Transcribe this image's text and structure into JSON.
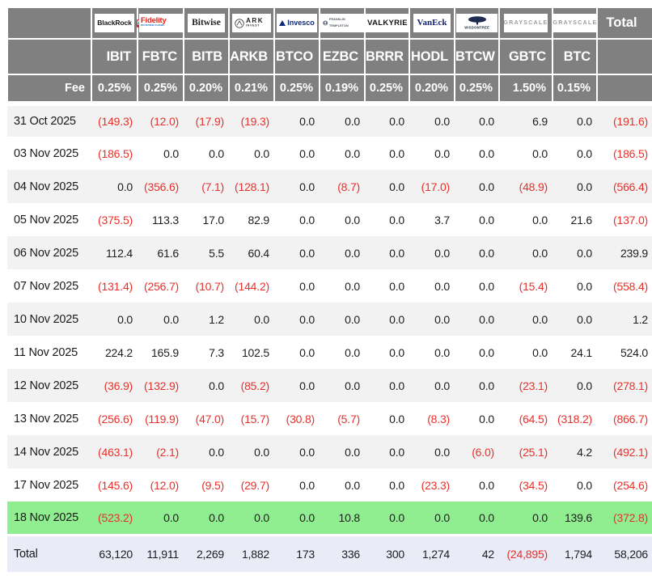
{
  "colors": {
    "header_gray": "#808080",
    "negative_red": "#e8302a",
    "highlight_green": "#90ee90",
    "total_row_bg": "#e9ecf7",
    "alt_row_bg": "#f2f2f2"
  },
  "chart_data": {
    "type": "table",
    "fee_label": "Fee",
    "total_label": "Total",
    "logos": {
      "blackrock": "BlackRock",
      "fidelity_icon": "f",
      "fidelity": "Fidelity",
      "fidelity_sub": "INTERNATIONAL",
      "bitwise": "Bitwise",
      "ark_main": "ARK",
      "ark_sub": "INVEST",
      "invesco": "Invesco",
      "franklin_line1": "FRANKLIN",
      "franklin_line2": "TEMPLETON",
      "valkyrie": "VALKYRIE",
      "vaneck": "VanEck",
      "wisdomtree": "WISDOMTREE",
      "grayscale_gbtc": "GRAYSCALE",
      "grayscale_btc": "GRAYSCALE"
    },
    "providers": [
      "BlackRock",
      "Fidelity",
      "Bitwise",
      "ARK Invest",
      "Invesco",
      "Franklin Templeton",
      "Valkyrie",
      "VanEck",
      "WisdomTree",
      "Grayscale",
      "Grayscale"
    ],
    "tickers": [
      "IBIT",
      "FBTC",
      "BITB",
      "ARKB",
      "BTCO",
      "EZBC",
      "BRRR",
      "HODL",
      "BTCW",
      "GBTC",
      "BTC"
    ],
    "fees": [
      "0.25%",
      "0.25%",
      "0.20%",
      "0.21%",
      "0.25%",
      "0.19%",
      "0.25%",
      "0.20%",
      "0.25%",
      "1.50%",
      "0.15%"
    ],
    "rows": [
      {
        "label": "31 Oct 2025",
        "values": [
          "(149.3)",
          "(12.0)",
          "(17.9)",
          "(19.3)",
          "0.0",
          "0.0",
          "0.0",
          "0.0",
          "0.0",
          "6.9",
          "0.0"
        ],
        "total": "(191.6)"
      },
      {
        "label": "03 Nov 2025",
        "values": [
          "(186.5)",
          "0.0",
          "0.0",
          "0.0",
          "0.0",
          "0.0",
          "0.0",
          "0.0",
          "0.0",
          "0.0",
          "0.0"
        ],
        "total": "(186.5)"
      },
      {
        "label": "04 Nov 2025",
        "values": [
          "0.0",
          "(356.6)",
          "(7.1)",
          "(128.1)",
          "0.0",
          "(8.7)",
          "0.0",
          "(17.0)",
          "0.0",
          "(48.9)",
          "0.0"
        ],
        "total": "(566.4)"
      },
      {
        "label": "05 Nov 2025",
        "values": [
          "(375.5)",
          "113.3",
          "17.0",
          "82.9",
          "0.0",
          "0.0",
          "0.0",
          "3.7",
          "0.0",
          "0.0",
          "21.6"
        ],
        "total": "(137.0)"
      },
      {
        "label": "06 Nov 2025",
        "values": [
          "112.4",
          "61.6",
          "5.5",
          "60.4",
          "0.0",
          "0.0",
          "0.0",
          "0.0",
          "0.0",
          "0.0",
          "0.0"
        ],
        "total": "239.9"
      },
      {
        "label": "07 Nov 2025",
        "values": [
          "(131.4)",
          "(256.7)",
          "(10.7)",
          "(144.2)",
          "0.0",
          "0.0",
          "0.0",
          "0.0",
          "0.0",
          "(15.4)",
          "0.0"
        ],
        "total": "(558.4)"
      },
      {
        "label": "10 Nov 2025",
        "values": [
          "0.0",
          "0.0",
          "1.2",
          "0.0",
          "0.0",
          "0.0",
          "0.0",
          "0.0",
          "0.0",
          "0.0",
          "0.0"
        ],
        "total": "1.2"
      },
      {
        "label": "11 Nov 2025",
        "values": [
          "224.2",
          "165.9",
          "7.3",
          "102.5",
          "0.0",
          "0.0",
          "0.0",
          "0.0",
          "0.0",
          "0.0",
          "24.1"
        ],
        "total": "524.0"
      },
      {
        "label": "12 Nov 2025",
        "values": [
          "(36.9)",
          "(132.9)",
          "0.0",
          "(85.2)",
          "0.0",
          "0.0",
          "0.0",
          "0.0",
          "0.0",
          "(23.1)",
          "0.0"
        ],
        "total": "(278.1)"
      },
      {
        "label": "13 Nov 2025",
        "values": [
          "(256.6)",
          "(119.9)",
          "(47.0)",
          "(15.7)",
          "(30.8)",
          "(5.7)",
          "0.0",
          "(8.3)",
          "0.0",
          "(64.5)",
          "(318.2)"
        ],
        "total": "(866.7)"
      },
      {
        "label": "14 Nov 2025",
        "values": [
          "(463.1)",
          "(2.1)",
          "0.0",
          "0.0",
          "0.0",
          "0.0",
          "0.0",
          "0.0",
          "(6.0)",
          "(25.1)",
          "4.2"
        ],
        "total": "(492.1)"
      },
      {
        "label": "17 Nov 2025",
        "values": [
          "(145.6)",
          "(12.0)",
          "(9.5)",
          "(29.7)",
          "0.0",
          "0.0",
          "0.0",
          "(23.3)",
          "0.0",
          "(34.5)",
          "0.0"
        ],
        "total": "(254.6)"
      },
      {
        "label": "18 Nov 2025",
        "highlight": "green",
        "values": [
          "(523.2)",
          "0.0",
          "0.0",
          "0.0",
          "0.0",
          "10.8",
          "0.0",
          "0.0",
          "0.0",
          "0.0",
          "139.6"
        ],
        "total": "(372.8)"
      }
    ],
    "total_row": {
      "label": "Total",
      "values": [
        "63,120",
        "11,911",
        "2,269",
        "1,882",
        "173",
        "336",
        "300",
        "1,274",
        "42",
        "(24,895)",
        "1,794"
      ],
      "total": "58,206"
    }
  }
}
